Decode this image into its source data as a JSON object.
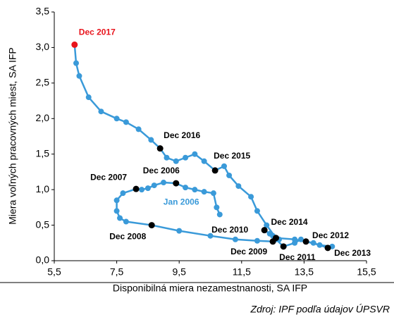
{
  "chart_data": {
    "type": "scatter-line",
    "x_label": "Disponibilná miera nezamestnanosti, SA IFP",
    "y_label": "Miera voľných pracovných miest, SA IFP",
    "color": "#3a9ad9",
    "x": [
      10.8,
      10.7,
      10.6,
      10.3,
      10.0,
      9.7,
      9.4,
      9.0,
      8.7,
      8.5,
      8.3,
      8.12,
      7.7,
      7.5,
      7.5,
      7.6,
      7.8,
      8.62,
      9.5,
      10.5,
      11.3,
      12.0,
      12.5,
      12.7,
      12.5,
      12.23,
      12.4,
      12.6,
      12.84,
      13.2,
      13.4,
      13.56,
      14.0,
      14.4,
      14.26,
      13.8,
      13.2,
      12.6,
      12.3,
      12.0,
      11.8,
      11.4,
      11.1,
      10.94,
      10.65,
      10.3,
      10.0,
      9.7,
      9.4,
      9.1,
      8.89,
      8.6,
      8.2,
      7.8,
      7.5,
      7.0,
      6.6,
      6.3,
      6.2,
      6.15
    ],
    "values": [
      0.65,
      0.75,
      0.95,
      0.97,
      1.0,
      1.03,
      1.09,
      1.1,
      1.06,
      1.02,
      1.0,
      1.01,
      0.95,
      0.85,
      0.7,
      0.6,
      0.55,
      0.5,
      0.42,
      0.35,
      0.3,
      0.28,
      0.27,
      0.3,
      0.35,
      0.43,
      0.38,
      0.3,
      0.2,
      0.25,
      0.3,
      0.27,
      0.22,
      0.2,
      0.18,
      0.25,
      0.3,
      0.32,
      0.5,
      0.7,
      0.9,
      1.05,
      1.2,
      1.33,
      1.27,
      1.4,
      1.5,
      1.45,
      1.4,
      1.45,
      1.58,
      1.7,
      1.85,
      1.95,
      2.0,
      2.1,
      2.3,
      2.6,
      2.78,
      3.04
    ],
    "annotations": [
      {
        "label": "Jan 2006",
        "x": 10.8,
        "y": 0.65,
        "color": "#3a9ad9"
      },
      {
        "label": "Dec 2006",
        "x": 9.4,
        "y": 1.09,
        "color": "#000000"
      },
      {
        "label": "Dec 2007",
        "x": 8.12,
        "y": 1.01,
        "color": "#000000"
      },
      {
        "label": "Dec 2008",
        "x": 8.62,
        "y": 0.5,
        "color": "#000000"
      },
      {
        "label": "Dec 2009",
        "x": 12.5,
        "y": 0.27,
        "color": "#000000"
      },
      {
        "label": "Dec 2010",
        "x": 12.23,
        "y": 0.43,
        "color": "#000000"
      },
      {
        "label": "Dec 2011",
        "x": 12.84,
        "y": 0.2,
        "color": "#000000"
      },
      {
        "label": "Dec 2012",
        "x": 13.56,
        "y": 0.27,
        "color": "#000000"
      },
      {
        "label": "Dec 2013",
        "x": 14.26,
        "y": 0.18,
        "color": "#000000"
      },
      {
        "label": "Dec 2014",
        "x": 12.6,
        "y": 0.32,
        "color": "#000000"
      },
      {
        "label": "Dec 2015",
        "x": 10.65,
        "y": 1.27,
        "color": "#000000"
      },
      {
        "label": "Dec 2016",
        "x": 8.89,
        "y": 1.58,
        "color": "#000000"
      },
      {
        "label": "Dec 2017",
        "x": 6.15,
        "y": 3.04,
        "color": "#e8141c"
      }
    ],
    "xlim": [
      5.5,
      15.5
    ],
    "xticks": [
      {
        "value": 5.5,
        "label": "5,5"
      },
      {
        "value": 7.5,
        "label": "7,5"
      },
      {
        "value": 9.5,
        "label": "9,5"
      },
      {
        "value": 11.5,
        "label": "11,5"
      },
      {
        "value": 13.5,
        "label": "13,5"
      },
      {
        "value": 15.5,
        "label": "15,5"
      }
    ],
    "ylim": [
      0,
      3.5
    ],
    "yticks": [
      {
        "value": 0,
        "label": "0,0"
      },
      {
        "value": 0.5,
        "label": "0,5"
      },
      {
        "value": 1,
        "label": "1,0"
      },
      {
        "value": 1.5,
        "label": "1,5"
      },
      {
        "value": 2,
        "label": "2,0"
      },
      {
        "value": 2.5,
        "label": "2,5"
      },
      {
        "value": 3,
        "label": "3,0"
      },
      {
        "value": 3.5,
        "label": "3,5"
      }
    ]
  },
  "source": "Zdroj: IPF podľa údajov ÚPSVR"
}
